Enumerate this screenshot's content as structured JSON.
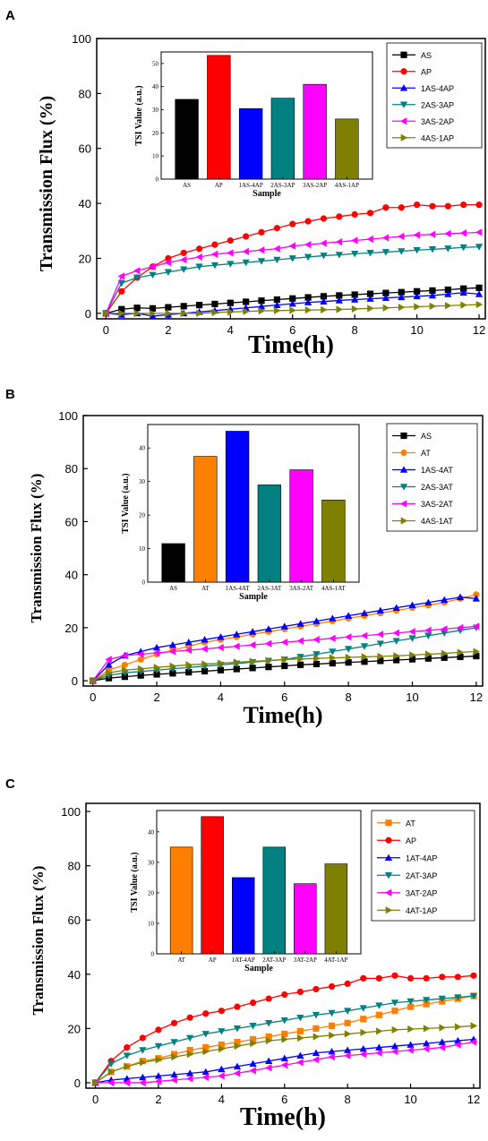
{
  "figure": {
    "panels": [
      {
        "label": "A",
        "ylabel": "Transmission Flux (%)",
        "xlabel": "Time(h)"
      },
      {
        "label": "B",
        "ylabel": "Transmission Flux (%)",
        "xlabel": "Time(h)"
      },
      {
        "label": "C",
        "ylabel": "Transmission Flux (%)",
        "xlabel": "Time(h)"
      }
    ]
  },
  "chart_data": [
    {
      "type": "line",
      "panel": "A",
      "title": "",
      "xlabel": "Time(h)",
      "ylabel": "Transmission Flux (%)",
      "xlim": [
        -0.3,
        12.2
      ],
      "ylim": [
        -2,
        100
      ],
      "xticks": [
        0,
        2,
        4,
        6,
        8,
        10,
        12
      ],
      "yticks": [
        0,
        20,
        40,
        60,
        80,
        100
      ],
      "grid": false,
      "legend": "top-right",
      "x": [
        0,
        0.5,
        1,
        1.5,
        2,
        2.5,
        3,
        3.5,
        4,
        4.5,
        5,
        5.5,
        6,
        6.5,
        7,
        7.5,
        8,
        8.5,
        9,
        9.5,
        10,
        10.5,
        11,
        11.5,
        12
      ],
      "series": [
        {
          "name": "AS",
          "color": "#000000",
          "marker": "square",
          "values": [
            0,
            1.5,
            2,
            1.8,
            2.2,
            2.6,
            3,
            3.4,
            3.8,
            4.2,
            4.6,
            5,
            5.4,
            5.8,
            6.2,
            6.5,
            6.8,
            7.1,
            7.4,
            7.7,
            8,
            8.3,
            8.6,
            9,
            9.3
          ]
        },
        {
          "name": "AP",
          "color": "#ff0000",
          "marker": "circle",
          "values": [
            0,
            8,
            13,
            17,
            20,
            22,
            23.5,
            25,
            26.5,
            28,
            29.5,
            31,
            32.5,
            33.5,
            34.5,
            35.2,
            36,
            36.5,
            38.5,
            38.5,
            39.5,
            39,
            39,
            39.5,
            39.5
          ]
        },
        {
          "name": "1AS-4AP",
          "color": "#0000ff",
          "marker": "triangle-up",
          "values": [
            0,
            -0.5,
            0,
            -1,
            -0.5,
            0,
            0.5,
            1,
            1.5,
            2,
            2.5,
            3,
            3.5,
            4,
            4.3,
            4.7,
            5,
            5.3,
            5.6,
            5.9,
            6.2,
            6.5,
            7,
            7.5,
            7
          ]
        },
        {
          "name": "2AS-3AP",
          "color": "#008080",
          "marker": "triangle-down",
          "values": [
            0,
            11,
            13,
            14,
            15,
            16,
            17,
            17.5,
            18,
            18.5,
            19,
            19.5,
            20,
            20.5,
            21,
            21.3,
            21.7,
            22,
            22.3,
            22.6,
            23,
            23.3,
            23.6,
            24,
            24.2
          ]
        },
        {
          "name": "3AS-2AP",
          "color": "#ff00ff",
          "marker": "triangle-left",
          "values": [
            0,
            13.5,
            15.5,
            17,
            18.5,
            19.5,
            20.5,
            21.5,
            22,
            22.5,
            23,
            23.5,
            24.5,
            25,
            25.5,
            26,
            26.5,
            27,
            27.5,
            28,
            28.5,
            28.7,
            29,
            29.2,
            29.5
          ]
        },
        {
          "name": "4AS-1AP",
          "color": "#808000",
          "marker": "triangle-right",
          "values": [
            0,
            0,
            0,
            0,
            0,
            0,
            0,
            0.3,
            0.5,
            0.7,
            0.9,
            1,
            1.1,
            1.2,
            1.3,
            1.4,
            1.6,
            1.8,
            2,
            2.2,
            2.4,
            2.6,
            2.8,
            3,
            3.2
          ]
        }
      ],
      "inset": {
        "type": "bar",
        "xlabel": "Sample",
        "ylabel": "TSI Value (a.u.)",
        "ylim": [
          0,
          55
        ],
        "yticks": [
          0,
          10,
          20,
          30,
          40,
          50
        ],
        "categories": [
          "AS",
          "AP",
          "1AS-4AP",
          "2AS-3AP",
          "3AS-2AP",
          "4AS-1AP"
        ],
        "values": [
          34.5,
          53.5,
          30.5,
          35,
          41,
          26
        ],
        "colors": [
          "#000000",
          "#ff0000",
          "#0000ff",
          "#008080",
          "#ff00ff",
          "#808000"
        ]
      }
    },
    {
      "type": "line",
      "panel": "B",
      "title": "",
      "xlabel": "Time(h)",
      "ylabel": "Transmission Flux (%)",
      "xlim": [
        -0.3,
        12.2
      ],
      "ylim": [
        -2,
        100
      ],
      "xticks": [
        0,
        2,
        4,
        6,
        8,
        10,
        12
      ],
      "yticks": [
        0,
        20,
        40,
        60,
        80,
        100
      ],
      "grid": false,
      "legend": "top-right",
      "x": [
        0,
        0.5,
        1,
        1.5,
        2,
        2.5,
        3,
        3.5,
        4,
        4.5,
        5,
        5.5,
        6,
        6.5,
        7,
        7.5,
        8,
        8.5,
        9,
        9.5,
        10,
        10.5,
        11,
        11.5,
        12
      ],
      "series": [
        {
          "name": "AS",
          "color": "#000000",
          "marker": "square",
          "values": [
            0,
            1,
            1.5,
            2,
            2.4,
            2.8,
            3.2,
            3.6,
            4,
            4.4,
            4.8,
            5.2,
            5.6,
            6,
            6.3,
            6.6,
            6.9,
            7.2,
            7.5,
            7.8,
            8.1,
            8.4,
            8.7,
            9,
            9.3
          ]
        },
        {
          "name": "AT",
          "color": "#ff8000",
          "marker": "circle",
          "values": [
            0,
            4,
            6,
            8,
            10,
            11.5,
            13,
            14.5,
            15.5,
            16.5,
            17.5,
            18.5,
            19.5,
            20.5,
            21.5,
            22.5,
            23.5,
            24.5,
            25.5,
            26.5,
            27.5,
            28.5,
            29.5,
            31,
            32.5
          ]
        },
        {
          "name": "1AS-4AT",
          "color": "#0000ff",
          "marker": "triangle-up",
          "values": [
            0,
            6,
            9.5,
            11,
            12.5,
            13.5,
            14.5,
            15.5,
            16.5,
            17.5,
            18.5,
            19.5,
            20.5,
            21.5,
            22.5,
            23.5,
            24.5,
            25.5,
            26.5,
            27.5,
            28.5,
            29.5,
            30.5,
            31.5,
            31
          ]
        },
        {
          "name": "2AS-3AT",
          "color": "#008080",
          "marker": "triangle-down",
          "values": [
            0,
            2,
            3,
            3.5,
            4,
            4.5,
            5,
            5.5,
            6,
            6.5,
            7,
            7.5,
            8,
            9,
            10,
            11,
            12,
            13,
            14,
            15,
            16,
            17,
            18,
            19,
            20
          ]
        },
        {
          "name": "3AS-2AT",
          "color": "#ff00ff",
          "marker": "triangle-left",
          "values": [
            0,
            8,
            9.5,
            10,
            10.5,
            11,
            11.5,
            12,
            12.5,
            13,
            13.5,
            14,
            14.5,
            15,
            15.5,
            16,
            16.5,
            17,
            17.5,
            18,
            18.5,
            19,
            19.5,
            20,
            20.5
          ]
        },
        {
          "name": "4AS-1AT",
          "color": "#808000",
          "marker": "triangle-right",
          "values": [
            0,
            3,
            4,
            4.5,
            5,
            5.5,
            6,
            6.3,
            6.6,
            7,
            7.3,
            7.6,
            8,
            8.2,
            8.4,
            8.6,
            8.8,
            9,
            9.2,
            9.4,
            9.7,
            10,
            10.3,
            10.7,
            11
          ]
        }
      ],
      "inset": {
        "type": "bar",
        "xlabel": "Sample",
        "ylabel": "TSI  Value (a.u.)",
        "ylim": [
          0,
          47
        ],
        "yticks": [
          0,
          10,
          20,
          30,
          40
        ],
        "categories": [
          "AS",
          "AT",
          "1AS-4AT",
          "2AS-3AT",
          "3AS-2AT",
          "4AS-1AT"
        ],
        "values": [
          11.5,
          37.5,
          45,
          29,
          33.5,
          24.5
        ],
        "colors": [
          "#000000",
          "#ff8000",
          "#0000ff",
          "#008080",
          "#ff00ff",
          "#808000"
        ]
      }
    },
    {
      "type": "line",
      "panel": "C",
      "title": "",
      "xlabel": "Time(h)",
      "ylabel": "Transmission Flux (%)",
      "xlim": [
        -0.3,
        12.2
      ],
      "ylim": [
        -2,
        103
      ],
      "xticks": [
        0,
        2,
        4,
        6,
        8,
        10,
        12
      ],
      "yticks": [
        0,
        20,
        40,
        60,
        80,
        100
      ],
      "grid": false,
      "legend": "top-right",
      "x": [
        0,
        0.5,
        1,
        1.5,
        2,
        2.5,
        3,
        3.5,
        4,
        4.5,
        5,
        5.5,
        6,
        6.5,
        7,
        7.5,
        8,
        8.5,
        9,
        9.5,
        10,
        10.5,
        11,
        11.5,
        12
      ],
      "series": [
        {
          "name": "AT",
          "color": "#ff8000",
          "marker": "square",
          "values": [
            0,
            4,
            6,
            8,
            9,
            10.5,
            12,
            13,
            14,
            15,
            16,
            17,
            18,
            19,
            20,
            21,
            22,
            23.5,
            25,
            26.5,
            28,
            29,
            30,
            31,
            32
          ]
        },
        {
          "name": "AP",
          "color": "#ff0000",
          "marker": "circle",
          "values": [
            0,
            8,
            13,
            16.5,
            19.5,
            22,
            24,
            25.5,
            26.5,
            28,
            29.5,
            31,
            32.5,
            33.5,
            34.5,
            35.5,
            36.5,
            38.5,
            38.5,
            39.5,
            38.5,
            38.5,
            39,
            39,
            39.5
          ]
        },
        {
          "name": "1AT-4AP",
          "color": "#0000ff",
          "marker": "triangle-up",
          "values": [
            0,
            1,
            1.5,
            2,
            2.5,
            3,
            3.5,
            4,
            5,
            6,
            7,
            8,
            9,
            10,
            11,
            11.5,
            12,
            12.5,
            13,
            13.5,
            14,
            14.5,
            15,
            15.5,
            16
          ]
        },
        {
          "name": "2AT-3AP",
          "color": "#008080",
          "marker": "triangle-down",
          "values": [
            0,
            7,
            10,
            12,
            13.5,
            15,
            16.5,
            18,
            19,
            20,
            21,
            22,
            23,
            24,
            25,
            25.7,
            26.5,
            27.5,
            28.5,
            29.5,
            30,
            30.5,
            31,
            31.5,
            32
          ]
        },
        {
          "name": "3AT-2AP",
          "color": "#ff00ff",
          "marker": "triangle-left",
          "values": [
            0,
            0,
            0,
            0,
            0.5,
            1,
            1.5,
            2,
            2.5,
            3.5,
            4.5,
            5.5,
            6.5,
            7.5,
            8.5,
            9.5,
            10,
            10.5,
            11,
            11.5,
            12,
            12.5,
            13,
            14,
            15
          ]
        },
        {
          "name": "4AT-1AP",
          "color": "#808000",
          "marker": "triangle-right",
          "values": [
            0,
            4,
            6,
            7.5,
            8.5,
            9.5,
            10.5,
            11.5,
            12.5,
            13.5,
            14.5,
            15.5,
            16,
            16.5,
            17,
            17.5,
            18,
            18.5,
            19,
            19.5,
            19.8,
            20,
            20.3,
            20.6,
            21
          ]
        }
      ],
      "inset": {
        "type": "bar",
        "xlabel": "Sample",
        "ylabel": "TSI Value (a.u.)",
        "ylim": [
          0,
          47
        ],
        "yticks": [
          0,
          10,
          20,
          30,
          40
        ],
        "categories": [
          "AT",
          "AP",
          "1AT-4AP",
          "2AT-3AP",
          "3AT-2AP",
          "4AT-1AP"
        ],
        "values": [
          35,
          45,
          25,
          35,
          23,
          29.5
        ],
        "colors": [
          "#ff8000",
          "#ff0000",
          "#0000ff",
          "#008080",
          "#ff00ff",
          "#808000"
        ]
      }
    }
  ]
}
